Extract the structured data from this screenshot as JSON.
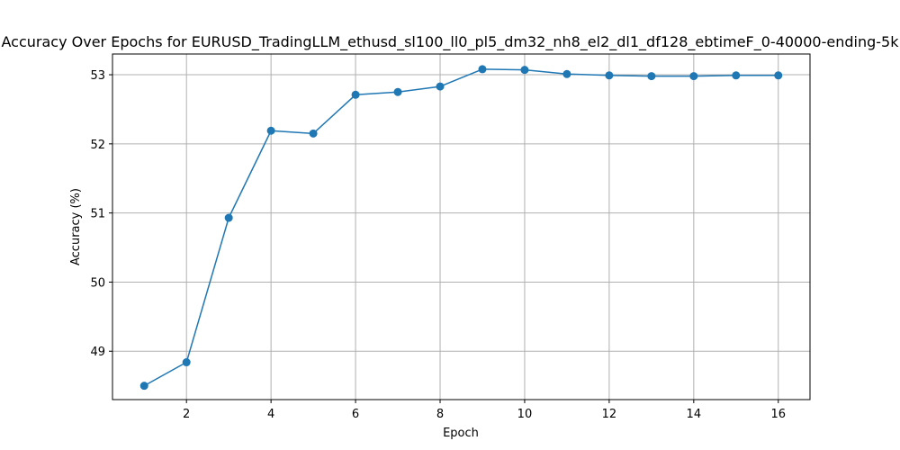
{
  "chart_data": {
    "type": "line",
    "title": "Accuracy Over Epochs for EURUSD_TradingLLM_ethusd_sl100_ll0_pl5_dm32_nh8_el2_dl1_df128_ebtimeF_0-40000-ending-5k",
    "xlabel": "Epoch",
    "ylabel": "Accuracy (%)",
    "xlim": [
      0.25,
      16.75
    ],
    "ylim": [
      48.3,
      53.3
    ],
    "xticks": [
      2,
      4,
      6,
      8,
      10,
      12,
      14,
      16
    ],
    "yticks": [
      49,
      50,
      51,
      52,
      53
    ],
    "grid": true,
    "marker": "circle",
    "series": [
      {
        "color": "#1f77b4",
        "x": [
          1,
          2,
          3,
          4,
          5,
          6,
          7,
          8,
          9,
          10,
          11,
          12,
          13,
          14,
          15,
          16
        ],
        "y": [
          48.5,
          48.84,
          50.93,
          52.19,
          52.15,
          52.71,
          52.75,
          52.83,
          53.08,
          53.07,
          53.01,
          52.99,
          52.98,
          52.98,
          52.99,
          52.99
        ]
      }
    ]
  }
}
